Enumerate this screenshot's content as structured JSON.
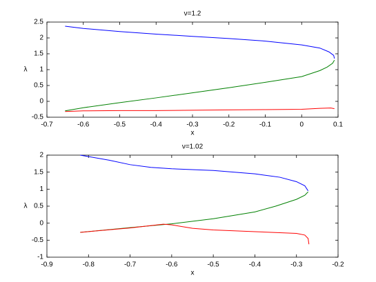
{
  "chart_data": [
    {
      "type": "line",
      "title": "ν=1.2",
      "x_label": "x",
      "y_label": "λ",
      "xlim": [
        -0.7,
        0.1
      ],
      "xticks": [
        -0.7,
        -0.6,
        -0.5,
        -0.4,
        -0.3,
        -0.2,
        -0.1,
        0,
        0.1
      ],
      "ylim": [
        -0.5,
        2.5
      ],
      "yticks": [
        -0.5,
        0,
        0.5,
        1,
        1.5,
        2,
        2.5
      ],
      "series": [
        {
          "color": "#0000ff",
          "x": [
            -0.65,
            -0.6,
            -0.5,
            -0.4,
            -0.3,
            -0.2,
            -0.1,
            0,
            0.05,
            0.075,
            0.088,
            0.09
          ],
          "values": [
            2.37,
            2.3,
            2.2,
            2.12,
            2.05,
            1.98,
            1.9,
            1.78,
            1.68,
            1.56,
            1.45,
            1.35
          ]
        },
        {
          "color": "#008000",
          "x": [
            0.09,
            0.085,
            0.07,
            0.05,
            0,
            -0.1,
            -0.2,
            -0.3,
            -0.4,
            -0.5,
            -0.6,
            -0.65
          ],
          "values": [
            1.3,
            1.2,
            1.08,
            0.97,
            0.78,
            0.6,
            0.43,
            0.27,
            0.11,
            -0.04,
            -0.2,
            -0.3
          ]
        },
        {
          "color": "#ff0000",
          "x": [
            -0.65,
            -0.6,
            -0.5,
            -0.4,
            -0.3,
            -0.2,
            -0.1,
            0,
            0.05,
            0.08,
            0.09
          ],
          "values": [
            -0.32,
            -0.3,
            -0.29,
            -0.29,
            -0.28,
            -0.27,
            -0.26,
            -0.25,
            -0.22,
            -0.21,
            -0.23
          ]
        }
      ]
    },
    {
      "type": "line",
      "title": "ν=1.02",
      "x_label": "x",
      "y_label": "λ",
      "xlim": [
        -0.9,
        -0.2
      ],
      "xticks": [
        -0.9,
        -0.8,
        -0.7,
        -0.6,
        -0.5,
        -0.4,
        -0.3,
        -0.2
      ],
      "ylim": [
        -1,
        2
      ],
      "yticks": [
        -1,
        -0.5,
        0,
        0.5,
        1,
        1.5,
        2
      ],
      "series": [
        {
          "color": "#0000ff",
          "x": [
            -0.82,
            -0.75,
            -0.7,
            -0.65,
            -0.6,
            -0.5,
            -0.4,
            -0.34,
            -0.3,
            -0.28,
            -0.272
          ],
          "values": [
            2.0,
            1.85,
            1.72,
            1.64,
            1.6,
            1.55,
            1.45,
            1.35,
            1.22,
            1.1,
            0.95
          ]
        },
        {
          "color": "#008000",
          "x": [
            -0.272,
            -0.28,
            -0.3,
            -0.35,
            -0.4,
            -0.5,
            -0.6,
            -0.7,
            -0.82
          ],
          "values": [
            0.92,
            0.82,
            0.7,
            0.5,
            0.33,
            0.13,
            -0.02,
            -0.13,
            -0.27
          ]
        },
        {
          "color": "#ff0000",
          "x": [
            -0.82,
            -0.7,
            -0.62,
            -0.6,
            -0.55,
            -0.5,
            -0.4,
            -0.3,
            -0.28,
            -0.272,
            -0.27
          ],
          "values": [
            -0.27,
            -0.14,
            -0.03,
            -0.05,
            -0.15,
            -0.2,
            -0.25,
            -0.3,
            -0.35,
            -0.45,
            -0.62
          ]
        }
      ]
    }
  ]
}
